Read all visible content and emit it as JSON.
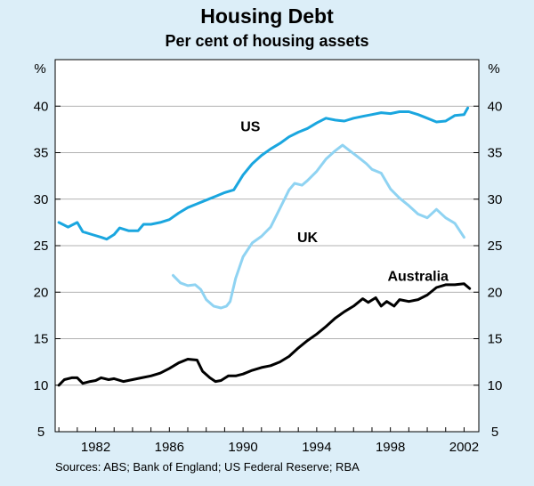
{
  "chart_data": {
    "type": "line",
    "title": "Housing Debt",
    "subtitle": "Per cent of housing assets",
    "ylabel_left": "%",
    "ylabel_right": "%",
    "ylim": [
      5,
      45
    ],
    "yticks": [
      5,
      10,
      15,
      20,
      25,
      30,
      35,
      40
    ],
    "xlim": [
      1979.8,
      2002.8
    ],
    "xticks": [
      1982,
      1986,
      1990,
      1994,
      1998,
      2002
    ],
    "source": "Sources: ABS; Bank of England; US Federal Reserve; RBA",
    "series": [
      {
        "name": "US",
        "color": "#1aa6df",
        "label_at": [
          1990.4,
          37.3
        ],
        "points": [
          [
            1980.0,
            27.5
          ],
          [
            1980.5,
            27.0
          ],
          [
            1981.0,
            27.5
          ],
          [
            1981.3,
            26.5
          ],
          [
            1981.8,
            26.2
          ],
          [
            1982.3,
            25.9
          ],
          [
            1982.6,
            25.7
          ],
          [
            1983.0,
            26.2
          ],
          [
            1983.3,
            26.9
          ],
          [
            1983.8,
            26.6
          ],
          [
            1984.3,
            26.6
          ],
          [
            1984.6,
            27.3
          ],
          [
            1985.0,
            27.3
          ],
          [
            1985.5,
            27.5
          ],
          [
            1986.0,
            27.8
          ],
          [
            1986.5,
            28.5
          ],
          [
            1987.0,
            29.1
          ],
          [
            1987.5,
            29.5
          ],
          [
            1988.0,
            29.9
          ],
          [
            1988.5,
            30.3
          ],
          [
            1989.0,
            30.7
          ],
          [
            1989.5,
            31.0
          ],
          [
            1990.0,
            32.6
          ],
          [
            1990.5,
            33.8
          ],
          [
            1991.0,
            34.7
          ],
          [
            1991.5,
            35.4
          ],
          [
            1992.0,
            36.0
          ],
          [
            1992.5,
            36.7
          ],
          [
            1993.0,
            37.2
          ],
          [
            1993.5,
            37.6
          ],
          [
            1994.0,
            38.2
          ],
          [
            1994.5,
            38.7
          ],
          [
            1995.0,
            38.5
          ],
          [
            1995.5,
            38.4
          ],
          [
            1996.0,
            38.7
          ],
          [
            1996.5,
            38.9
          ],
          [
            1997.0,
            39.1
          ],
          [
            1997.5,
            39.3
          ],
          [
            1998.0,
            39.2
          ],
          [
            1998.5,
            39.4
          ],
          [
            1999.0,
            39.4
          ],
          [
            1999.5,
            39.1
          ],
          [
            2000.0,
            38.7
          ],
          [
            2000.5,
            38.3
          ],
          [
            2001.0,
            38.4
          ],
          [
            2001.5,
            39.0
          ],
          [
            2002.0,
            39.1
          ],
          [
            2002.2,
            39.8
          ]
        ]
      },
      {
        "name": "UK",
        "color": "#8fd3f2",
        "label_at": [
          1993.5,
          25.4
        ],
        "points": [
          [
            1986.2,
            21.8
          ],
          [
            1986.6,
            21.0
          ],
          [
            1987.0,
            20.7
          ],
          [
            1987.4,
            20.8
          ],
          [
            1987.7,
            20.3
          ],
          [
            1988.0,
            19.2
          ],
          [
            1988.4,
            18.5
          ],
          [
            1988.8,
            18.3
          ],
          [
            1989.1,
            18.5
          ],
          [
            1989.3,
            19.0
          ],
          [
            1989.6,
            21.5
          ],
          [
            1990.0,
            23.8
          ],
          [
            1990.5,
            25.3
          ],
          [
            1991.0,
            26.0
          ],
          [
            1991.5,
            27.0
          ],
          [
            1992.0,
            29.0
          ],
          [
            1992.5,
            31.0
          ],
          [
            1992.8,
            31.7
          ],
          [
            1993.2,
            31.5
          ],
          [
            1993.5,
            32.0
          ],
          [
            1994.0,
            33.0
          ],
          [
            1994.5,
            34.3
          ],
          [
            1995.0,
            35.2
          ],
          [
            1995.4,
            35.8
          ],
          [
            1995.8,
            35.2
          ],
          [
            1996.2,
            34.6
          ],
          [
            1996.7,
            33.8
          ],
          [
            1997.0,
            33.2
          ],
          [
            1997.5,
            32.8
          ],
          [
            1998.0,
            31.1
          ],
          [
            1998.5,
            30.1
          ],
          [
            1999.0,
            29.3
          ],
          [
            1999.5,
            28.4
          ],
          [
            2000.0,
            28.0
          ],
          [
            2000.5,
            28.9
          ],
          [
            2001.0,
            28.0
          ],
          [
            2001.5,
            27.4
          ],
          [
            2002.0,
            25.9
          ]
        ]
      },
      {
        "name": "Australia",
        "color": "#000000",
        "label_at": [
          1999.5,
          21.2
        ],
        "points": [
          [
            1980.0,
            10.0
          ],
          [
            1980.3,
            10.6
          ],
          [
            1980.7,
            10.8
          ],
          [
            1981.0,
            10.8
          ],
          [
            1981.3,
            10.2
          ],
          [
            1981.7,
            10.4
          ],
          [
            1982.0,
            10.5
          ],
          [
            1982.3,
            10.8
          ],
          [
            1982.7,
            10.6
          ],
          [
            1983.0,
            10.7
          ],
          [
            1983.5,
            10.4
          ],
          [
            1984.0,
            10.6
          ],
          [
            1984.5,
            10.8
          ],
          [
            1985.0,
            11.0
          ],
          [
            1985.5,
            11.3
          ],
          [
            1986.0,
            11.8
          ],
          [
            1986.5,
            12.4
          ],
          [
            1987.0,
            12.8
          ],
          [
            1987.5,
            12.7
          ],
          [
            1987.8,
            11.5
          ],
          [
            1988.2,
            10.8
          ],
          [
            1988.5,
            10.4
          ],
          [
            1988.8,
            10.5
          ],
          [
            1989.2,
            11.0
          ],
          [
            1989.6,
            11.0
          ],
          [
            1990.0,
            11.2
          ],
          [
            1990.5,
            11.6
          ],
          [
            1991.0,
            11.9
          ],
          [
            1991.5,
            12.1
          ],
          [
            1992.0,
            12.5
          ],
          [
            1992.5,
            13.1
          ],
          [
            1993.0,
            14.0
          ],
          [
            1993.5,
            14.8
          ],
          [
            1994.0,
            15.5
          ],
          [
            1994.5,
            16.3
          ],
          [
            1995.0,
            17.2
          ],
          [
            1995.5,
            17.9
          ],
          [
            1996.0,
            18.5
          ],
          [
            1996.5,
            19.3
          ],
          [
            1996.8,
            18.9
          ],
          [
            1997.2,
            19.4
          ],
          [
            1997.5,
            18.5
          ],
          [
            1997.8,
            19.0
          ],
          [
            1998.2,
            18.5
          ],
          [
            1998.5,
            19.2
          ],
          [
            1999.0,
            19.0
          ],
          [
            1999.5,
            19.2
          ],
          [
            2000.0,
            19.7
          ],
          [
            2000.5,
            20.5
          ],
          [
            2001.0,
            20.8
          ],
          [
            2001.5,
            20.8
          ],
          [
            2002.0,
            20.9
          ],
          [
            2002.3,
            20.4
          ]
        ]
      }
    ]
  }
}
